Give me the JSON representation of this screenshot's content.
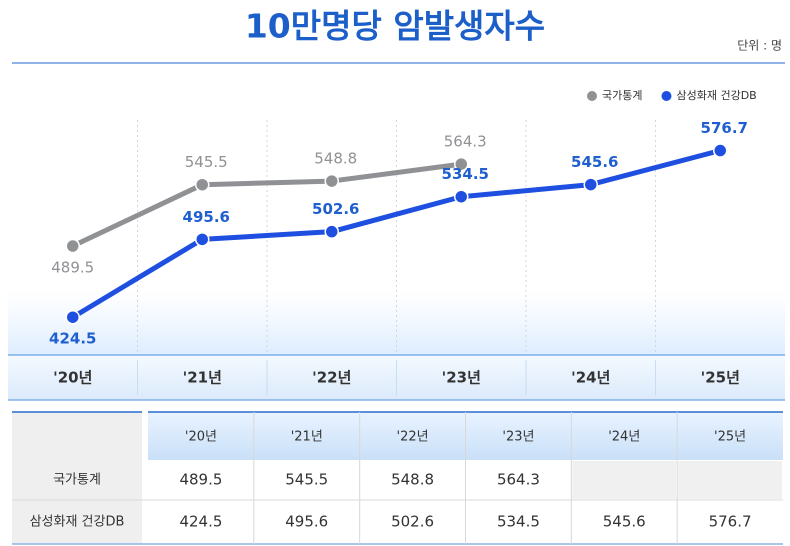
{
  "chart_data": {
    "type": "line",
    "title": "10만명당 암발생자수",
    "unit": "단위 : 명",
    "categories": [
      "'20년",
      "'21년",
      "'22년",
      "'23년",
      "'24년",
      "'25년"
    ],
    "series": [
      {
        "name": "국가통계",
        "color": "#8f9194",
        "label_color": "#8f9194",
        "values": [
          489.5,
          545.5,
          548.8,
          564.3,
          null,
          null
        ]
      },
      {
        "name": "삼성화재 건강DB",
        "color": "#1f4fe0",
        "label_color": "#1f5fd0",
        "values": [
          424.5,
          495.6,
          502.6,
          534.5,
          545.6,
          576.7
        ]
      }
    ],
    "ylim": [
      390,
      600
    ],
    "legend": "top-right"
  }
}
